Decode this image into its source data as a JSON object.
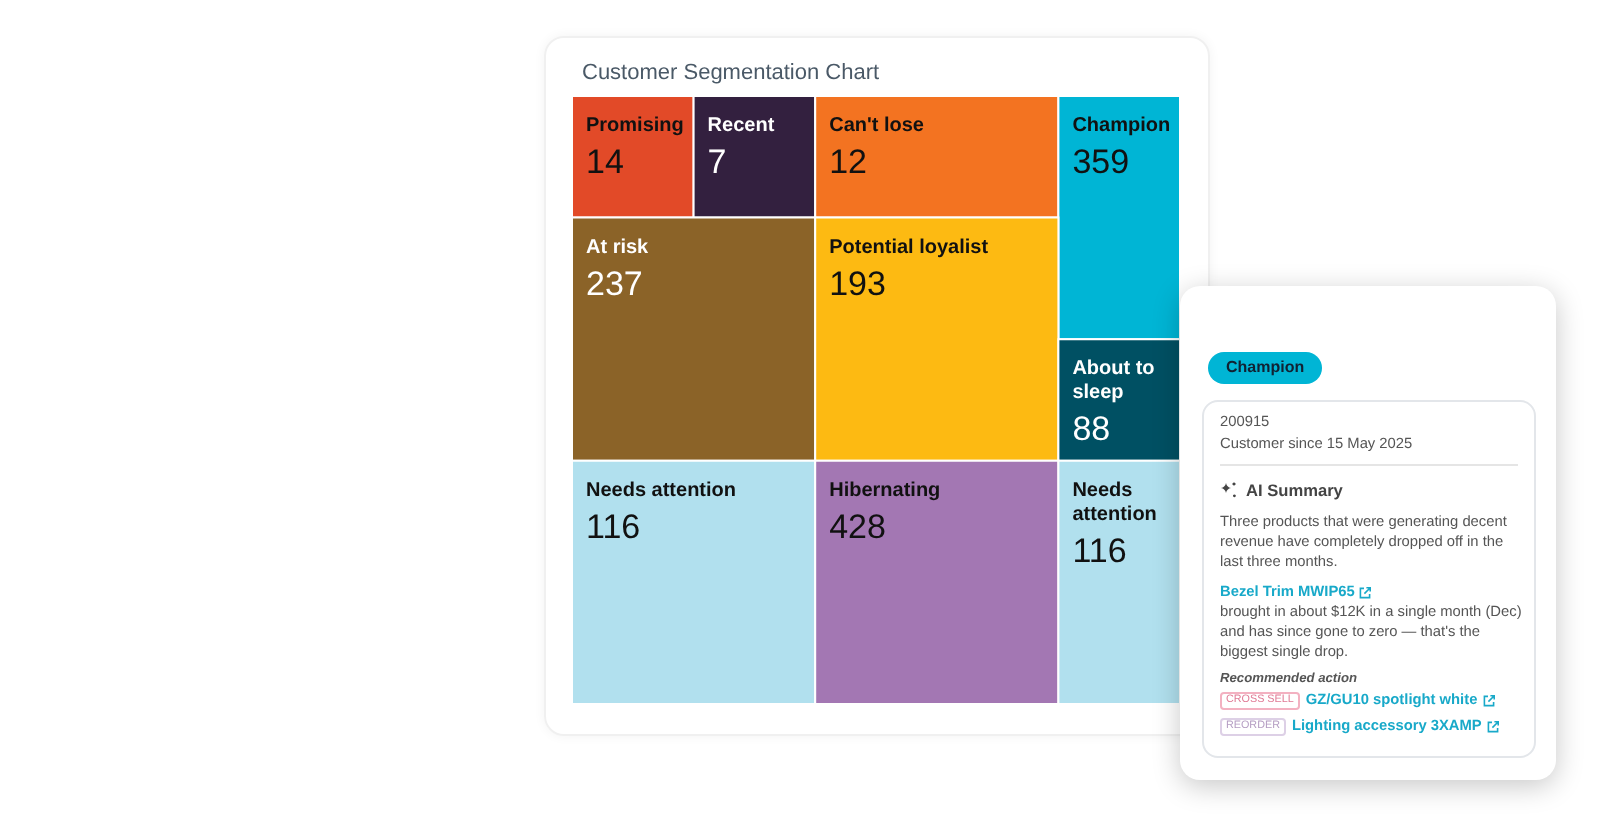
{
  "chart_data": [
    {
      "type": "other",
      "title": "Customer Segmentation Chart",
      "categories": [
        "Promising",
        "Recent",
        "Can't lose",
        "Champion",
        "At risk",
        "Potential loyalist",
        "About to sleep",
        "Needs attention",
        "Hibernating",
        "Needs attention"
      ],
      "values": [
        14,
        7,
        12,
        359,
        237,
        193,
        88,
        116,
        428,
        116
      ],
      "colors": [
        "#e24a28",
        "#33203f",
        "#f37321",
        "#00b5d5",
        "#8b6328",
        "#fdba12",
        "#005063",
        "#b1e0ee",
        "#a377b3",
        "#b1e0ee"
      ],
      "data_labels": true
    },
    {
      "type": "other",
      "annotations": [
        "Champion",
        "200915",
        "Customer since 15 May 2025",
        "AI Summary",
        "Three products that were generating decent revenue have completely dropped off in the last three months.",
        "Bezel Trim MWIP65",
        "brought in about $12K in a single month (Dec) and has since gone to zero — that's the biggest single drop.",
        "Recommended action",
        "CROSS SELL",
        "GZ/GU10 spotlight white",
        "REORDER",
        "Lighting accessory 3XAMP"
      ]
    }
  ]
}
